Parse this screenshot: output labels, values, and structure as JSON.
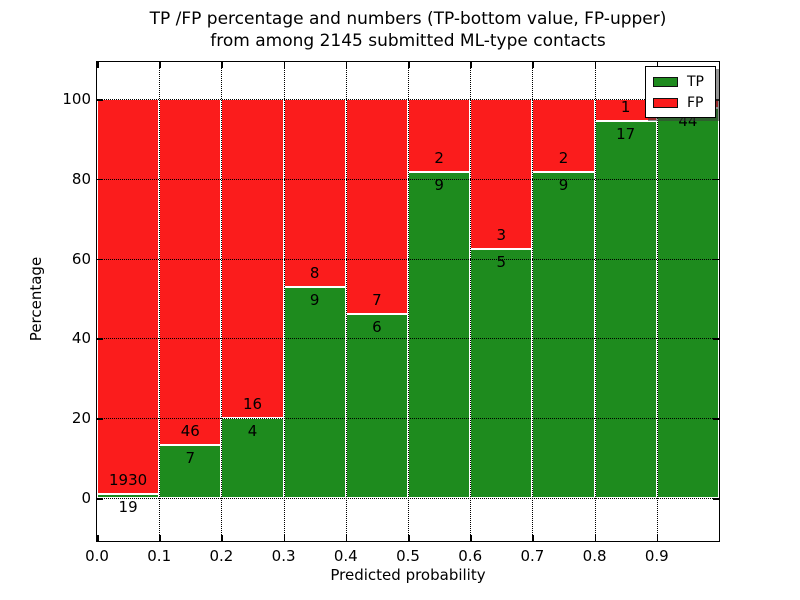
{
  "title": {
    "line1": "TP /FP percentage and numbers (TP-bottom value, FP-upper)",
    "line2": "from among 2145 submitted ML-type contacts"
  },
  "axes": {
    "xlabel": "Predicted probability",
    "ylabel": "Percentage",
    "yticks": [
      {
        "value": 0,
        "label": "0"
      },
      {
        "value": 20,
        "label": "20"
      },
      {
        "value": 40,
        "label": "40"
      },
      {
        "value": 60,
        "label": "60"
      },
      {
        "value": 80,
        "label": "80"
      },
      {
        "value": 100,
        "label": "100"
      }
    ],
    "xticks": [
      {
        "value": 0.0,
        "label": "0.0"
      },
      {
        "value": 0.1,
        "label": "0.1"
      },
      {
        "value": 0.2,
        "label": "0.2"
      },
      {
        "value": 0.3,
        "label": "0.3"
      },
      {
        "value": 0.4,
        "label": "0.4"
      },
      {
        "value": 0.5,
        "label": "0.5"
      },
      {
        "value": 0.6,
        "label": "0.6"
      },
      {
        "value": 0.7,
        "label": "0.7"
      },
      {
        "value": 0.8,
        "label": "0.8"
      },
      {
        "value": 0.9,
        "label": "0.9"
      }
    ],
    "xlim": [
      0.0,
      1.0
    ],
    "ylim": [
      -10.9,
      109.2
    ],
    "grid_style": "dotted"
  },
  "legend": {
    "position": "upper-right",
    "items": [
      {
        "label": "TP",
        "color": "#1e8b1e"
      },
      {
        "label": "FP",
        "color": "#fb1c1c"
      }
    ]
  },
  "colors": {
    "tp": "#1e8b1e",
    "fp": "#fb1c1c",
    "bar_edge": "#ffffff",
    "background": "#ffffff",
    "text": "#000000",
    "grid": "#000000"
  },
  "chart_data": {
    "type": "bar",
    "stacked": true,
    "percent_normalized": true,
    "title": "TP /FP percentage and numbers (TP-bottom value, FP-upper) from among 2145 submitted ML-type contacts",
    "xlabel": "Predicted probability",
    "ylabel": "Percentage",
    "total_contacts": 2145,
    "bins": [
      "0.0-0.1",
      "0.1-0.2",
      "0.2-0.3",
      "0.3-0.4",
      "0.4-0.5",
      "0.5-0.6",
      "0.6-0.7",
      "0.7-0.8",
      "0.8-0.9",
      "0.9-1.0"
    ],
    "series": [
      {
        "name": "TP",
        "values": [
          19,
          7,
          4,
          9,
          6,
          9,
          5,
          9,
          17,
          44
        ]
      },
      {
        "name": "FP",
        "values": [
          1930,
          46,
          16,
          8,
          7,
          2,
          3,
          2,
          1,
          1
        ]
      }
    ],
    "tp_percent": [
      0.97,
      13.21,
      20.0,
      52.94,
      46.15,
      81.82,
      62.5,
      81.82,
      94.44,
      97.78
    ],
    "fp_label_visible": [
      true,
      true,
      true,
      true,
      true,
      true,
      true,
      true,
      true,
      false
    ],
    "fp_label_hidden_note": "FP count label of last bin is covered by the legend box",
    "ylim": [
      -10.9,
      109.2
    ],
    "grid": true,
    "legend_position": "upper-right"
  }
}
